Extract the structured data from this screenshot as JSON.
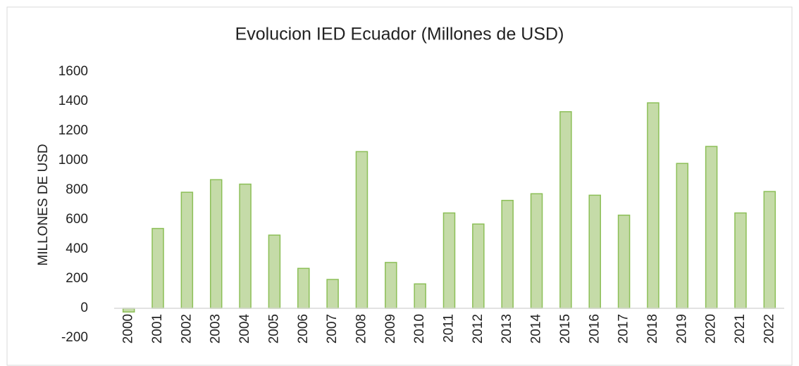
{
  "chart_data": {
    "type": "bar",
    "title": "Evolucion  IED Ecuador  (Millones  de USD)",
    "y_label": "MILLONES  DE USD",
    "categories": [
      "2000",
      "2001",
      "2002",
      "2003",
      "2004",
      "2005",
      "2006",
      "2007",
      "2008",
      "2009",
      "2010",
      "2011",
      "2012",
      "2013",
      "2014",
      "2015",
      "2016",
      "2017",
      "2018",
      "2019",
      "2020",
      "2021",
      "2022"
    ],
    "values": [
      -25,
      540,
      785,
      870,
      840,
      495,
      270,
      195,
      1060,
      310,
      165,
      645,
      570,
      730,
      775,
      1330,
      765,
      630,
      1390,
      980,
      1095,
      645,
      790
    ],
    "color": "#c5dba8",
    "edge_color": "#8cbf57",
    "ylim": [
      -200,
      1600
    ],
    "yticks": [
      -200,
      0,
      200,
      400,
      600,
      800,
      1000,
      1200,
      1400,
      1600
    ],
    "grid": false
  }
}
